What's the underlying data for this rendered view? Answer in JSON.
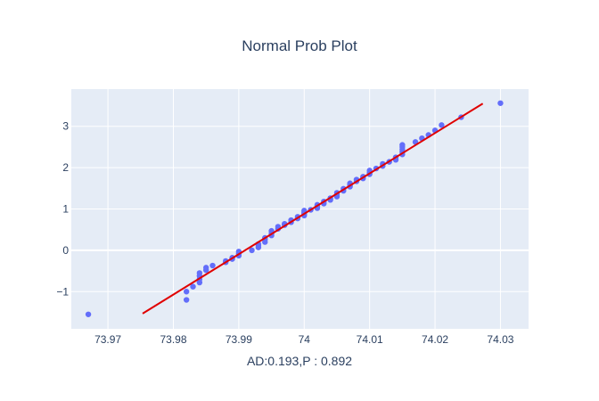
{
  "chart_data": {
    "type": "scatter",
    "title": "Normal Prob Plot",
    "xlabel": "AD:0.193,P : 0.892",
    "ylabel": "",
    "xlim": [
      73.9644,
      74.0343
    ],
    "ylim": [
      -1.9,
      3.9
    ],
    "x_ticks": [
      73.97,
      73.98,
      73.99,
      74.0,
      74.01,
      74.02,
      74.03
    ],
    "x_tick_labels": [
      "73.97",
      "73.98",
      "73.99",
      "74",
      "74.01",
      "74.02",
      "74.03"
    ],
    "y_ticks": [
      -1,
      0,
      1,
      2,
      3
    ],
    "y_tick_labels": [
      "−1",
      "0",
      "1",
      "2",
      "3"
    ],
    "grid": true,
    "legend": "none",
    "series": [
      {
        "type": "scatter",
        "color": "#636efa",
        "points": [
          [
            73.967,
            -1.55
          ],
          [
            73.982,
            -1.2
          ],
          [
            73.982,
            -1.0
          ],
          [
            73.983,
            -0.88
          ],
          [
            73.984,
            -0.78
          ],
          [
            73.984,
            -0.7
          ],
          [
            73.984,
            -0.62
          ],
          [
            73.984,
            -0.55
          ],
          [
            73.985,
            -0.48
          ],
          [
            73.985,
            -0.42
          ],
          [
            73.986,
            -0.37
          ],
          [
            73.988,
            -0.29
          ],
          [
            73.988,
            -0.26
          ],
          [
            73.989,
            -0.21
          ],
          [
            73.989,
            -0.18
          ],
          [
            73.99,
            -0.13
          ],
          [
            73.99,
            -0.08
          ],
          [
            73.99,
            -0.03
          ],
          [
            73.992,
            0.0
          ],
          [
            73.993,
            0.07
          ],
          [
            73.993,
            0.12
          ],
          [
            73.993,
            0.15
          ],
          [
            73.994,
            0.2
          ],
          [
            73.994,
            0.26
          ],
          [
            73.994,
            0.3
          ],
          [
            73.995,
            0.36
          ],
          [
            73.995,
            0.41
          ],
          [
            73.995,
            0.47
          ],
          [
            73.996,
            0.52
          ],
          [
            73.996,
            0.57
          ],
          [
            73.997,
            0.61
          ],
          [
            73.997,
            0.64
          ],
          [
            73.998,
            0.68
          ],
          [
            73.998,
            0.73
          ],
          [
            73.999,
            0.77
          ],
          [
            73.999,
            0.81
          ],
          [
            74.0,
            0.84
          ],
          [
            74.0,
            0.88
          ],
          [
            74.0,
            0.92
          ],
          [
            74.0,
            0.96
          ],
          [
            74.001,
            0.98
          ],
          [
            74.002,
            1.02
          ],
          [
            74.002,
            1.07
          ],
          [
            74.002,
            1.1
          ],
          [
            74.003,
            1.13
          ],
          [
            74.003,
            1.18
          ],
          [
            74.004,
            1.22
          ],
          [
            74.004,
            1.26
          ],
          [
            74.005,
            1.3
          ],
          [
            74.005,
            1.34
          ],
          [
            74.005,
            1.39
          ],
          [
            74.006,
            1.44
          ],
          [
            74.006,
            1.49
          ],
          [
            74.007,
            1.54
          ],
          [
            74.007,
            1.58
          ],
          [
            74.007,
            1.62
          ],
          [
            74.008,
            1.67
          ],
          [
            74.008,
            1.71
          ],
          [
            74.009,
            1.74
          ],
          [
            74.009,
            1.78
          ],
          [
            74.01,
            1.84
          ],
          [
            74.01,
            1.88
          ],
          [
            74.01,
            1.93
          ],
          [
            74.011,
            1.98
          ],
          [
            74.012,
            2.04
          ],
          [
            74.012,
            2.09
          ],
          [
            74.013,
            2.14
          ],
          [
            74.014,
            2.19
          ],
          [
            74.014,
            2.25
          ],
          [
            74.015,
            2.32
          ],
          [
            74.015,
            2.38
          ],
          [
            74.015,
            2.44
          ],
          [
            74.015,
            2.5
          ],
          [
            74.015,
            2.55
          ],
          [
            74.017,
            2.62
          ],
          [
            74.018,
            2.71
          ],
          [
            74.019,
            2.79
          ],
          [
            74.02,
            2.9
          ],
          [
            74.021,
            3.03
          ],
          [
            74.024,
            3.22
          ],
          [
            74.03,
            3.56
          ]
        ]
      },
      {
        "type": "line",
        "color": "#e00000",
        "points": [
          [
            73.9753,
            -1.53
          ],
          [
            74.0273,
            3.55
          ]
        ]
      }
    ]
  }
}
